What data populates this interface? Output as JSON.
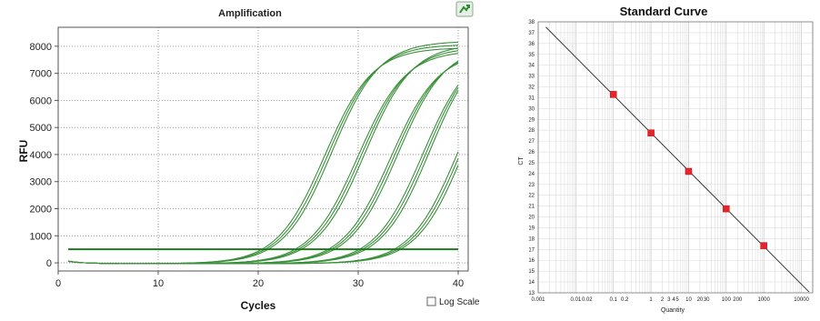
{
  "colors": {
    "curve": "#3a8f3a",
    "threshold": "#1f7a1f",
    "marker": "#e8232a",
    "regression": "#222222",
    "grid": "#cccccc",
    "plot_bg": "#ffffff",
    "icon": "#2e8b2e"
  },
  "log_scale": {
    "label": "Log Scale",
    "checked": false
  },
  "icon": "export-chart-icon",
  "chart_data": [
    {
      "type": "line",
      "title": "Amplification",
      "xlabel": "Cycles",
      "ylabel": "RFU",
      "xlim": [
        0,
        41
      ],
      "ylim": [
        -300,
        8700
      ],
      "xticks": [
        0,
        10,
        20,
        30,
        40
      ],
      "yticks": [
        0,
        1000,
        2000,
        3000,
        4000,
        5000,
        6000,
        7000,
        8000
      ],
      "grid": "dotted",
      "threshold": 500,
      "series_groups": [
        {
          "midpoint": 27.0,
          "plateau": 8100,
          "k": 0.42,
          "replicates": 3
        },
        {
          "midpoint": 30.3,
          "plateau": 8000,
          "k": 0.42,
          "replicates": 3
        },
        {
          "midpoint": 33.6,
          "plateau": 7950,
          "k": 0.42,
          "replicates": 3
        },
        {
          "midpoint": 36.8,
          "plateau": 8200,
          "k": 0.42,
          "replicates": 3
        },
        {
          "midpoint": 40.3,
          "plateau": 8300,
          "k": 0.42,
          "replicates": 3
        }
      ]
    },
    {
      "type": "scatter",
      "title": "Standard Curve",
      "xlabel": "Quantity",
      "ylabel": "CT",
      "x_scale": "log",
      "xlim": [
        0.001,
        20000
      ],
      "ylim": [
        13,
        38
      ],
      "xticks": [
        {
          "value": 0.001,
          "label": "0.001"
        },
        {
          "value": 0.01,
          "label": "0.01"
        },
        {
          "value": 0.02,
          "label": "0.02"
        },
        {
          "value": 0.1,
          "label": "0.1"
        },
        {
          "value": 0.2,
          "label": "0.2"
        },
        {
          "value": 1,
          "label": "1"
        },
        {
          "value": 2,
          "label": "2"
        },
        {
          "value": 3,
          "label": "3"
        },
        {
          "value": 4,
          "label": "4"
        },
        {
          "value": 5,
          "label": "5"
        },
        {
          "value": 10,
          "label": "10"
        },
        {
          "value": 20,
          "label": "20"
        },
        {
          "value": 30,
          "label": "30"
        },
        {
          "value": 100,
          "label": "100"
        },
        {
          "value": 200,
          "label": "200"
        },
        {
          "value": 1000,
          "label": "1000"
        },
        {
          "value": 10000,
          "label": "10000"
        }
      ],
      "yticks": [
        13,
        14,
        15,
        16,
        17,
        18,
        19,
        20,
        21,
        22,
        23,
        24,
        25,
        26,
        27,
        28,
        29,
        30,
        31,
        32,
        33,
        34,
        35,
        36,
        37,
        38
      ],
      "grid": true,
      "points": [
        {
          "x": 0.1,
          "y": 31.3
        },
        {
          "x": 1,
          "y": 27.75
        },
        {
          "x": 10,
          "y": 24.2
        },
        {
          "x": 100,
          "y": 20.75
        },
        {
          "x": 1000,
          "y": 17.35
        }
      ],
      "regression": {
        "x_start": 0.0016,
        "x_end": 16000,
        "y_intercept": 27.75,
        "slope": -3.49
      }
    }
  ]
}
